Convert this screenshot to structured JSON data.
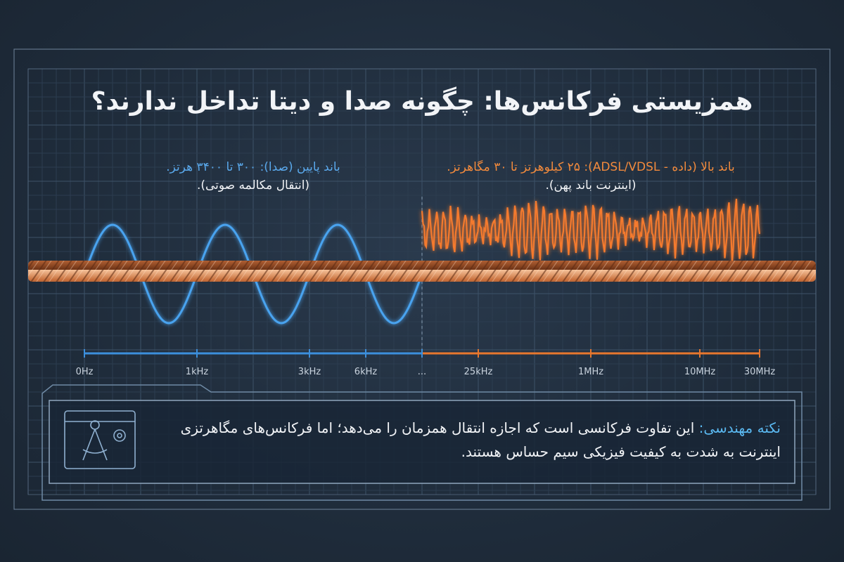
{
  "title": "همزیستی فرکانس‌ها: چگونه صدا و دیتا تداخل ندارند؟",
  "low_band": {
    "line1": "باند پایین (صدا): ۳۰۰ تا ۳۴۰۰ هرتز.",
    "line2": "(انتقال مکالمه صوتی)."
  },
  "high_band": {
    "line1": "باند بالا (داده - ADSL/VDSL): ۲۵ کیلوهرتز تا ۳۰ مگاهرتز.",
    "line2": "(اینترنت باند پهن)."
  },
  "axis_labels": [
    "0Hz",
    "1kHz",
    "3kHz",
    "6kHz",
    "...",
    "25kHz",
    "1MHz",
    "10MHz",
    "30MHz"
  ],
  "note": {
    "label": "نکته مهندسی:",
    "text": "این تفاوت فرکانسی است که اجازه انتقال همزمان را می‌دهد؛ اما فرکانس‌های مگاهرتزی اینترنت به شدت به کیفیت فیزیکی سیم حساس هستند."
  }
}
